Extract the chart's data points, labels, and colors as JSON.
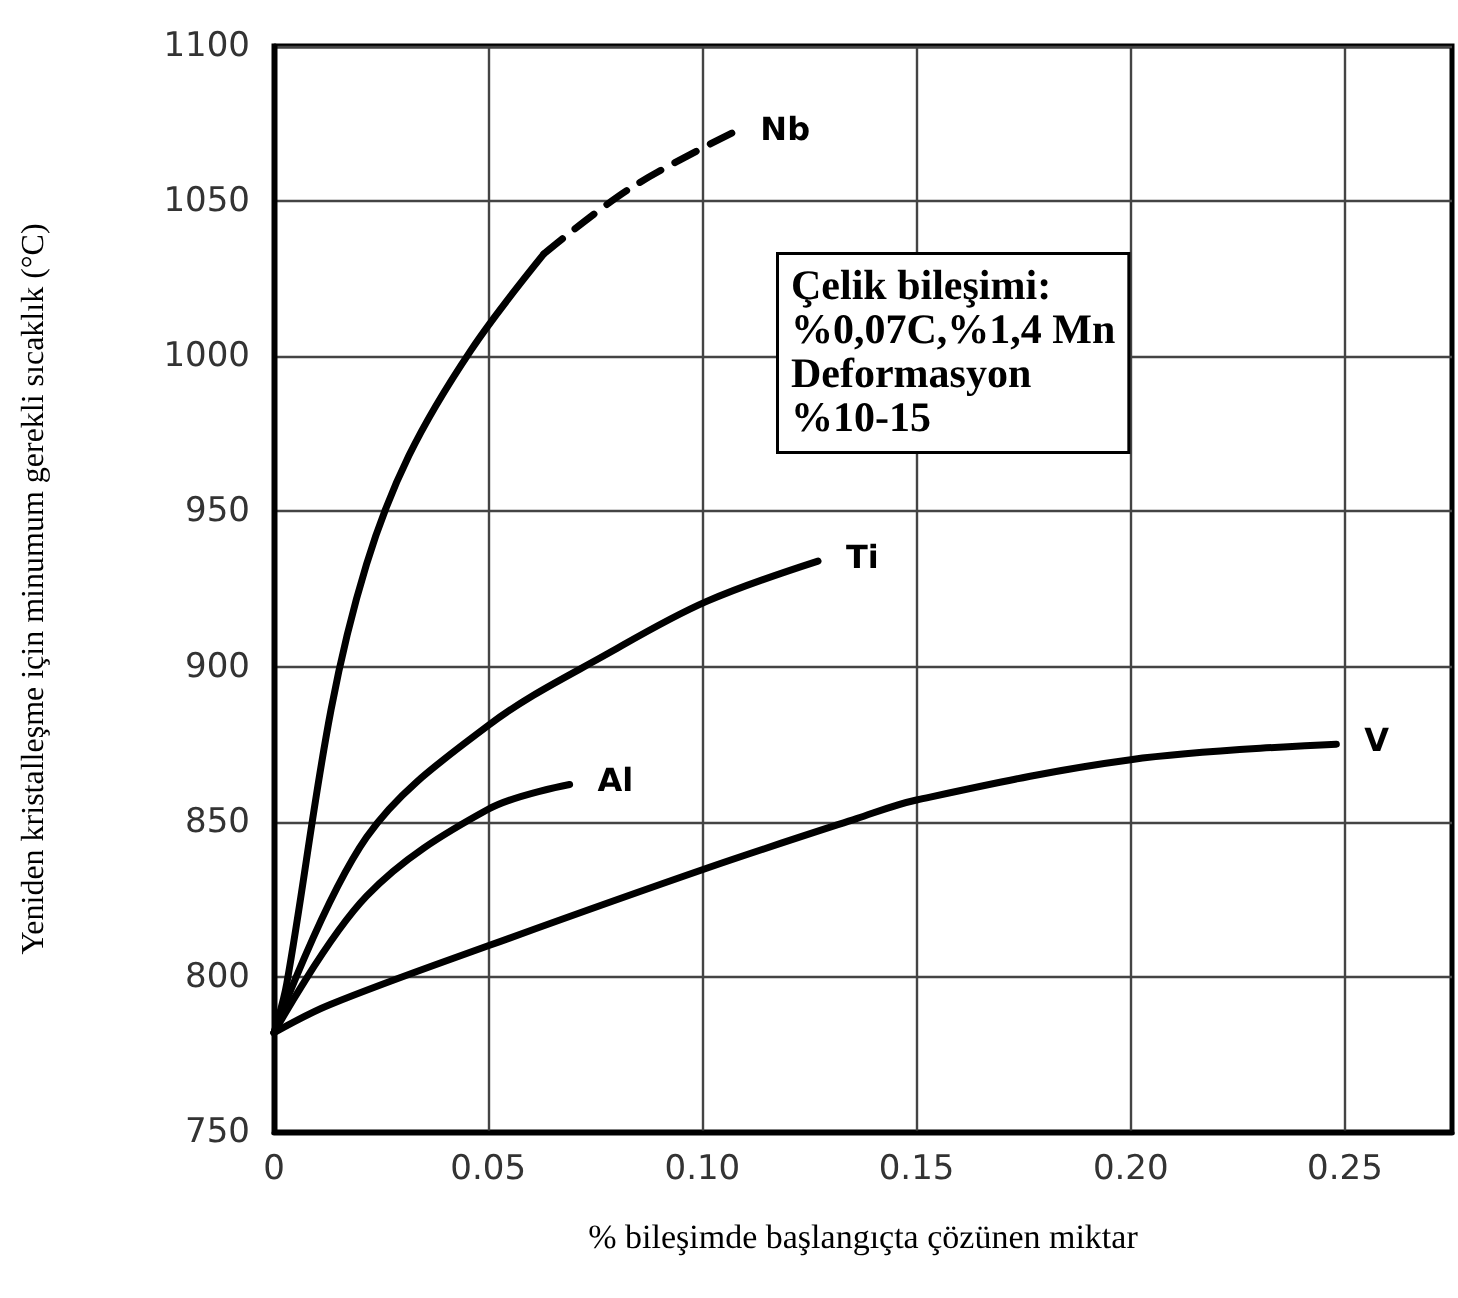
{
  "chart_data": {
    "type": "line",
    "xlabel": "% bileşimde başlangıçta çözünen miktar",
    "ylabel": "Yeniden kristalleşme için minumum gerekli sıcaklık (°C)",
    "annotations": [
      "Çelik bileşimi:\n%0,07C,%1,4 Mn\nDeformasyon\n%10-15"
    ],
    "xlim": [
      0,
      0.275
    ],
    "xticks": [
      0,
      {
        "value": 0.05,
        "label": "0.05"
      },
      {
        "value": 0.1,
        "label": "0.10"
      },
      {
        "value": 0.15,
        "label": "0.15"
      },
      {
        "value": 0.2,
        "label": "0.20"
      },
      {
        "value": 0.25,
        "label": "0.25"
      }
    ],
    "ylim": [
      750,
      1100
    ],
    "yticks": [
      750,
      800,
      850,
      900,
      950,
      1000,
      1050,
      1100
    ],
    "grid": true,
    "legend": false,
    "marker": "none",
    "series": [
      {
        "color": "#000000",
        "line_style": "solid",
        "x": [
          0,
          0.003,
          0.0133,
          0.0216,
          0.0315,
          0.046,
          0.063
        ],
        "values": [
          782,
          798,
          886,
          933,
          968,
          1002,
          1033
        ]
      },
      {
        "name": "Nb",
        "color": "#000000",
        "line_style": "dashed",
        "x": [
          0.063,
          0.083,
          0.107
        ],
        "values": [
          1033,
          1054,
          1072
        ]
      },
      {
        "name": "Ti",
        "color": "#000000",
        "line_style": "solid",
        "x": [
          0,
          0.0216,
          0.05,
          0.079,
          0.101,
          0.127
        ],
        "values": [
          782,
          845,
          881,
          905,
          921,
          934
        ]
      },
      {
        "name": "Al",
        "color": "#000000",
        "line_style": "solid",
        "x": [
          0,
          0.0216,
          0.05,
          0.069
        ],
        "values": [
          782,
          826,
          854,
          862
        ]
      },
      {
        "name": "V",
        "color": "#000000",
        "line_style": "solid",
        "x": [
          0,
          0.013,
          0.05,
          0.101,
          0.136,
          0.15,
          0.2,
          0.248
        ],
        "values": [
          782,
          791,
          810,
          835,
          851,
          857,
          870,
          875
        ]
      }
    ]
  }
}
